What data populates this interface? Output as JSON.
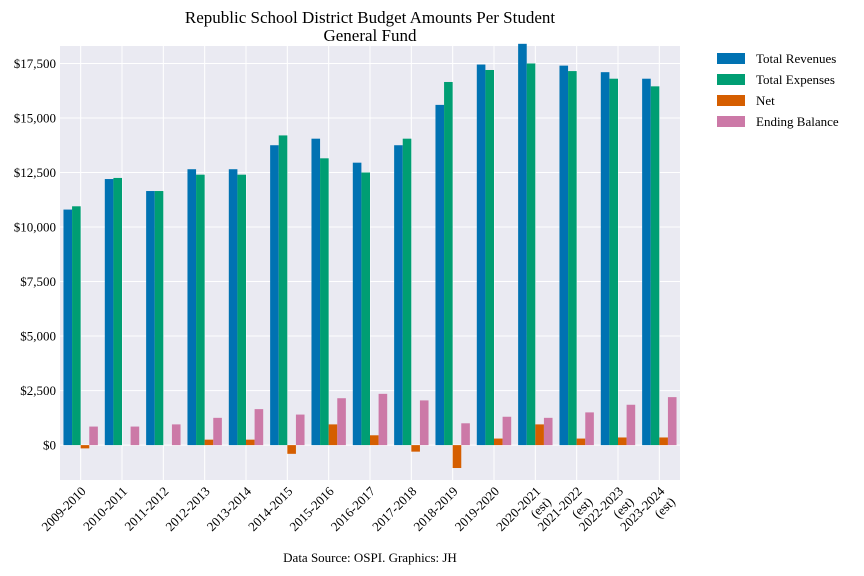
{
  "chart_data": {
    "type": "bar",
    "title": "Republic School District Budget Amounts Per Student",
    "subtitle": "General Fund",
    "xlabel": "",
    "ylabel": "",
    "source": "Data Source: OSPI. Graphics: JH",
    "ylim": [
      -1600,
      18300
    ],
    "yticks": [
      "$0",
      "$2,500",
      "$5,000",
      "$7,500",
      "$10,000",
      "$12,500",
      "$15,000",
      "$17,500"
    ],
    "ytick_values": [
      0,
      2500,
      5000,
      7500,
      10000,
      12500,
      15000,
      17500
    ],
    "grid": true,
    "legend_position": "outside-top-right",
    "categories": [
      [
        "2009-2010"
      ],
      [
        "2010-2011"
      ],
      [
        "2011-2012"
      ],
      [
        "2012-2013"
      ],
      [
        "2013-2014"
      ],
      [
        "2014-2015"
      ],
      [
        "2015-2016"
      ],
      [
        "2016-2017"
      ],
      [
        "2017-2018"
      ],
      [
        "2018-2019"
      ],
      [
        "2019-2020"
      ],
      [
        "2020-2021",
        "(est)"
      ],
      [
        "2021-2022",
        "(est)"
      ],
      [
        "2022-2023",
        "(est)"
      ],
      [
        "2023-2024",
        "(est)"
      ]
    ],
    "series": [
      {
        "name": "Total Revenues",
        "color": "#0072b2",
        "values": [
          10800,
          12200,
          11650,
          12650,
          12650,
          13750,
          14050,
          12950,
          13750,
          15600,
          17450,
          18400,
          17400,
          17100,
          16800
        ]
      },
      {
        "name": "Total Expenses",
        "color": "#009e73",
        "values": [
          10950,
          12250,
          11650,
          12400,
          12400,
          14200,
          13150,
          12500,
          14050,
          16650,
          17200,
          17500,
          17150,
          16800,
          16450
        ]
      },
      {
        "name": "Net",
        "color": "#d55e00",
        "values": [
          -150,
          0,
          0,
          250,
          250,
          -400,
          950,
          450,
          -300,
          -1050,
          300,
          950,
          300,
          350,
          350
        ]
      },
      {
        "name": "Ending Balance",
        "color": "#cc79a7",
        "values": [
          850,
          850,
          950,
          1250,
          1650,
          1400,
          2150,
          2350,
          2050,
          1000,
          1300,
          1250,
          1500,
          1850,
          2200
        ]
      }
    ]
  }
}
